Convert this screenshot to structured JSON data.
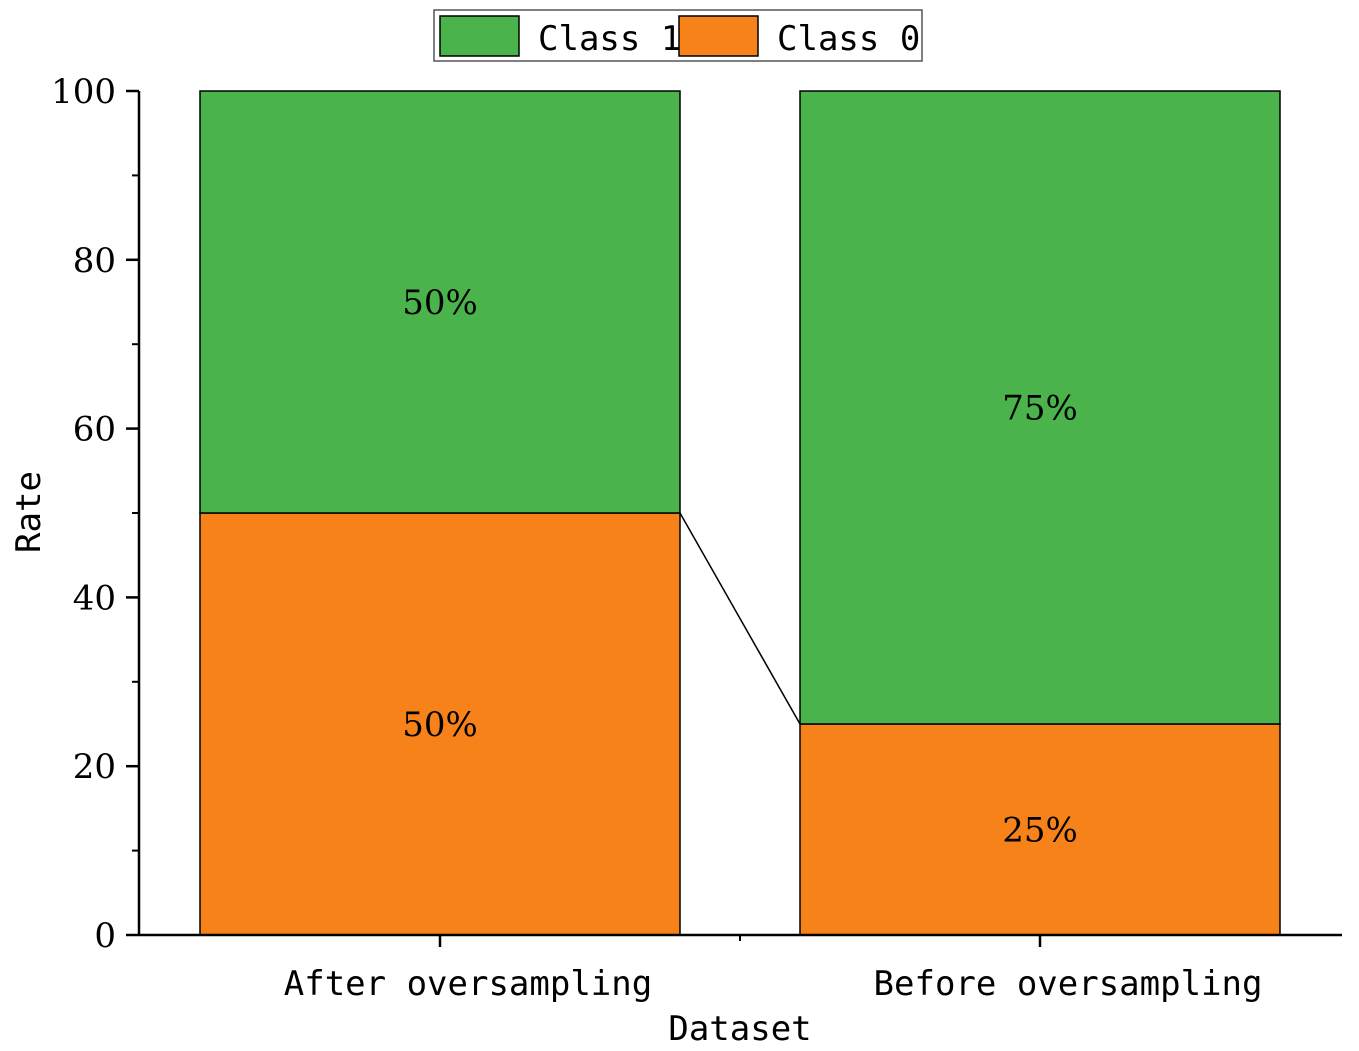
{
  "chart_data": {
    "type": "bar",
    "stacked": true,
    "categories": [
      "After oversampling",
      "Before oversampling"
    ],
    "series": [
      {
        "name": "Class 0",
        "values": [
          50,
          25
        ],
        "labels": [
          "50%",
          "25%"
        ],
        "color": "#F8821A"
      },
      {
        "name": "Class 1",
        "values": [
          50,
          75
        ],
        "labels": [
          "50%",
          "75%"
        ],
        "color": "#4BB34B"
      }
    ],
    "legend_order": [
      "Class 1",
      "Class 0"
    ],
    "legend_position": "top-center",
    "xlabel": "Dataset",
    "ylabel": "Rate",
    "ylim": [
      0,
      100
    ],
    "yticks": [
      0,
      20,
      40,
      60,
      80,
      100
    ],
    "connector_lines": true,
    "grid": false
  }
}
